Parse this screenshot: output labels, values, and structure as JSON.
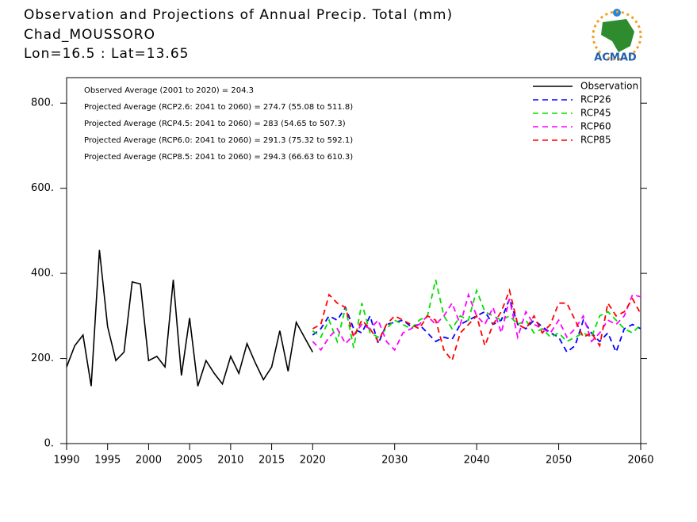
{
  "chart_data": {
    "type": "line",
    "title": "Observation and Projections of Annual Precip. Total (mm)",
    "subtitle": [
      "Chad_MOUSSORO",
      "Lon=16.5 : Lat=13.65"
    ],
    "logo": "ACMAD",
    "annotations": [
      "Observed Average (2001 to 2020) = 204.3",
      "Projected Average (RCP2.6: 2041 to 2060) = 274.7 (55.08 to 511.8)",
      "Projected Average (RCP4.5: 2041 to 2060) = 283 (54.65 to 507.3)",
      "Projected Average (RCP6.0: 2041 to 2060) = 291.3 (75.32 to 592.1)",
      "Projected Average (RCP8.5: 2041 to 2060) = 294.3 (66.63 to 610.3)"
    ],
    "xlim": [
      1990,
      2060
    ],
    "xticks": [
      1990,
      1995,
      2000,
      2005,
      2010,
      2015,
      2020,
      2030,
      2040,
      2050,
      2060
    ],
    "ylim": [
      0,
      860
    ],
    "yticks": [
      {
        "value": 0,
        "label": "0."
      },
      {
        "value": 200,
        "label": "200."
      },
      {
        "value": 400,
        "label": "400."
      },
      {
        "value": 600,
        "label": "600."
      },
      {
        "value": 800,
        "label": "800."
      }
    ],
    "legend": "top-right",
    "series": [
      {
        "name": "Observation",
        "color": "#000000",
        "dash": false,
        "x": [
          1990,
          1991,
          1992,
          1993,
          1994,
          1995,
          1996,
          1997,
          1998,
          1999,
          2000,
          2001,
          2002,
          2003,
          2004,
          2005,
          2006,
          2007,
          2008,
          2009,
          2010,
          2011,
          2012,
          2013,
          2014,
          2015,
          2016,
          2017,
          2018,
          2019,
          2020
        ],
        "values": [
          180,
          230,
          255,
          135,
          455,
          275,
          195,
          215,
          380,
          375,
          195,
          205,
          180,
          385,
          160,
          295,
          135,
          195,
          165,
          140,
          205,
          165,
          235,
          190,
          150,
          180,
          265,
          170,
          285,
          250,
          215
        ]
      },
      {
        "name": "RCP26",
        "color": "#0000ff",
        "dash": true,
        "x": [
          2020,
          2021,
          2022,
          2023,
          2024,
          2025,
          2026,
          2027,
          2028,
          2029,
          2030,
          2031,
          2032,
          2033,
          2034,
          2035,
          2036,
          2037,
          2038,
          2039,
          2040,
          2041,
          2042,
          2043,
          2044,
          2045,
          2046,
          2047,
          2048,
          2049,
          2050,
          2051,
          2052,
          2053,
          2054,
          2055,
          2056,
          2057,
          2058,
          2059,
          2060
        ],
        "values": [
          255,
          270,
          300,
          290,
          320,
          270,
          260,
          300,
          235,
          280,
          285,
          290,
          275,
          280,
          260,
          240,
          250,
          245,
          280,
          290,
          300,
          310,
          280,
          290,
          340,
          280,
          270,
          290,
          275,
          260,
          250,
          215,
          230,
          290,
          260,
          240,
          260,
          215,
          270,
          280,
          270
        ]
      },
      {
        "name": "RCP45",
        "color": "#00e000",
        "dash": true,
        "x": [
          2020,
          2021,
          2022,
          2023,
          2024,
          2025,
          2026,
          2027,
          2028,
          2029,
          2030,
          2031,
          2032,
          2033,
          2034,
          2035,
          2036,
          2037,
          2038,
          2039,
          2040,
          2041,
          2042,
          2043,
          2044,
          2045,
          2046,
          2047,
          2048,
          2049,
          2050,
          2051,
          2052,
          2053,
          2054,
          2055,
          2056,
          2057,
          2058,
          2059,
          2060
        ],
        "values": [
          265,
          250,
          290,
          240,
          320,
          225,
          330,
          260,
          250,
          270,
          290,
          280,
          270,
          290,
          300,
          385,
          300,
          270,
          300,
          290,
          360,
          310,
          300,
          290,
          300,
          280,
          290,
          260,
          270,
          250,
          260,
          240,
          250,
          260,
          250,
          300,
          310,
          290,
          270,
          260,
          280
        ]
      },
      {
        "name": "RCP60",
        "color": "#ff00ff",
        "dash": true,
        "x": [
          2020,
          2021,
          2022,
          2023,
          2024,
          2025,
          2026,
          2027,
          2028,
          2029,
          2030,
          2031,
          2032,
          2033,
          2034,
          2035,
          2036,
          2037,
          2038,
          2039,
          2040,
          2041,
          2042,
          2043,
          2044,
          2045,
          2046,
          2047,
          2048,
          2049,
          2050,
          2051,
          2052,
          2053,
          2054,
          2055,
          2056,
          2057,
          2058,
          2059,
          2060
        ],
        "values": [
          240,
          220,
          250,
          270,
          235,
          255,
          280,
          270,
          290,
          240,
          220,
          260,
          270,
          280,
          300,
          280,
          300,
          330,
          280,
          350,
          300,
          280,
          320,
          260,
          340,
          250,
          310,
          280,
          270,
          260,
          290,
          250,
          270,
          300,
          240,
          260,
          290,
          280,
          300,
          350,
          345
        ]
      },
      {
        "name": "RCP85",
        "color": "#ff0000",
        "dash": true,
        "x": [
          2020,
          2021,
          2022,
          2023,
          2024,
          2025,
          2026,
          2027,
          2028,
          2029,
          2030,
          2031,
          2032,
          2033,
          2034,
          2035,
          2036,
          2037,
          2038,
          2039,
          2040,
          2041,
          2042,
          2043,
          2044,
          2045,
          2046,
          2047,
          2048,
          2049,
          2050,
          2051,
          2052,
          2053,
          2054,
          2055,
          2056,
          2057,
          2058,
          2059,
          2060
        ],
        "values": [
          270,
          280,
          350,
          330,
          320,
          250,
          290,
          270,
          240,
          280,
          300,
          290,
          280,
          270,
          300,
          290,
          220,
          195,
          260,
          280,
          300,
          230,
          280,
          310,
          360,
          280,
          270,
          300,
          260,
          280,
          330,
          330,
          290,
          250,
          260,
          230,
          330,
          300,
          310,
          340,
          305
        ]
      }
    ]
  }
}
